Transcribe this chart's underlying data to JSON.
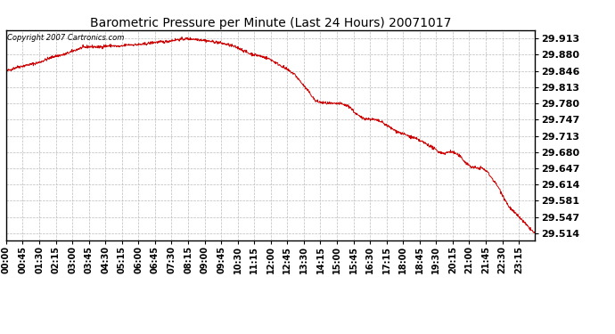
{
  "title": "Barometric Pressure per Minute (Last 24 Hours) 20071017",
  "copyright": "Copyright 2007 Cartronics.com",
  "line_color": "#cc0000",
  "bg_color": "#ffffff",
  "plot_bg_color": "#ffffff",
  "grid_color": "#bbbbbb",
  "yticks": [
    29.514,
    29.547,
    29.581,
    29.614,
    29.647,
    29.68,
    29.713,
    29.747,
    29.78,
    29.813,
    29.846,
    29.88,
    29.913
  ],
  "ymin": 29.5,
  "ymax": 29.93,
  "xtick_labels": [
    "00:00",
    "00:45",
    "01:30",
    "02:15",
    "03:00",
    "03:45",
    "04:30",
    "05:15",
    "06:00",
    "06:45",
    "07:30",
    "08:15",
    "09:00",
    "09:45",
    "10:30",
    "11:15",
    "12:00",
    "12:45",
    "13:30",
    "14:15",
    "15:00",
    "15:45",
    "16:30",
    "17:15",
    "18:00",
    "18:45",
    "19:30",
    "20:15",
    "21:00",
    "21:45",
    "22:30",
    "23:15"
  ],
  "num_points": 1440
}
